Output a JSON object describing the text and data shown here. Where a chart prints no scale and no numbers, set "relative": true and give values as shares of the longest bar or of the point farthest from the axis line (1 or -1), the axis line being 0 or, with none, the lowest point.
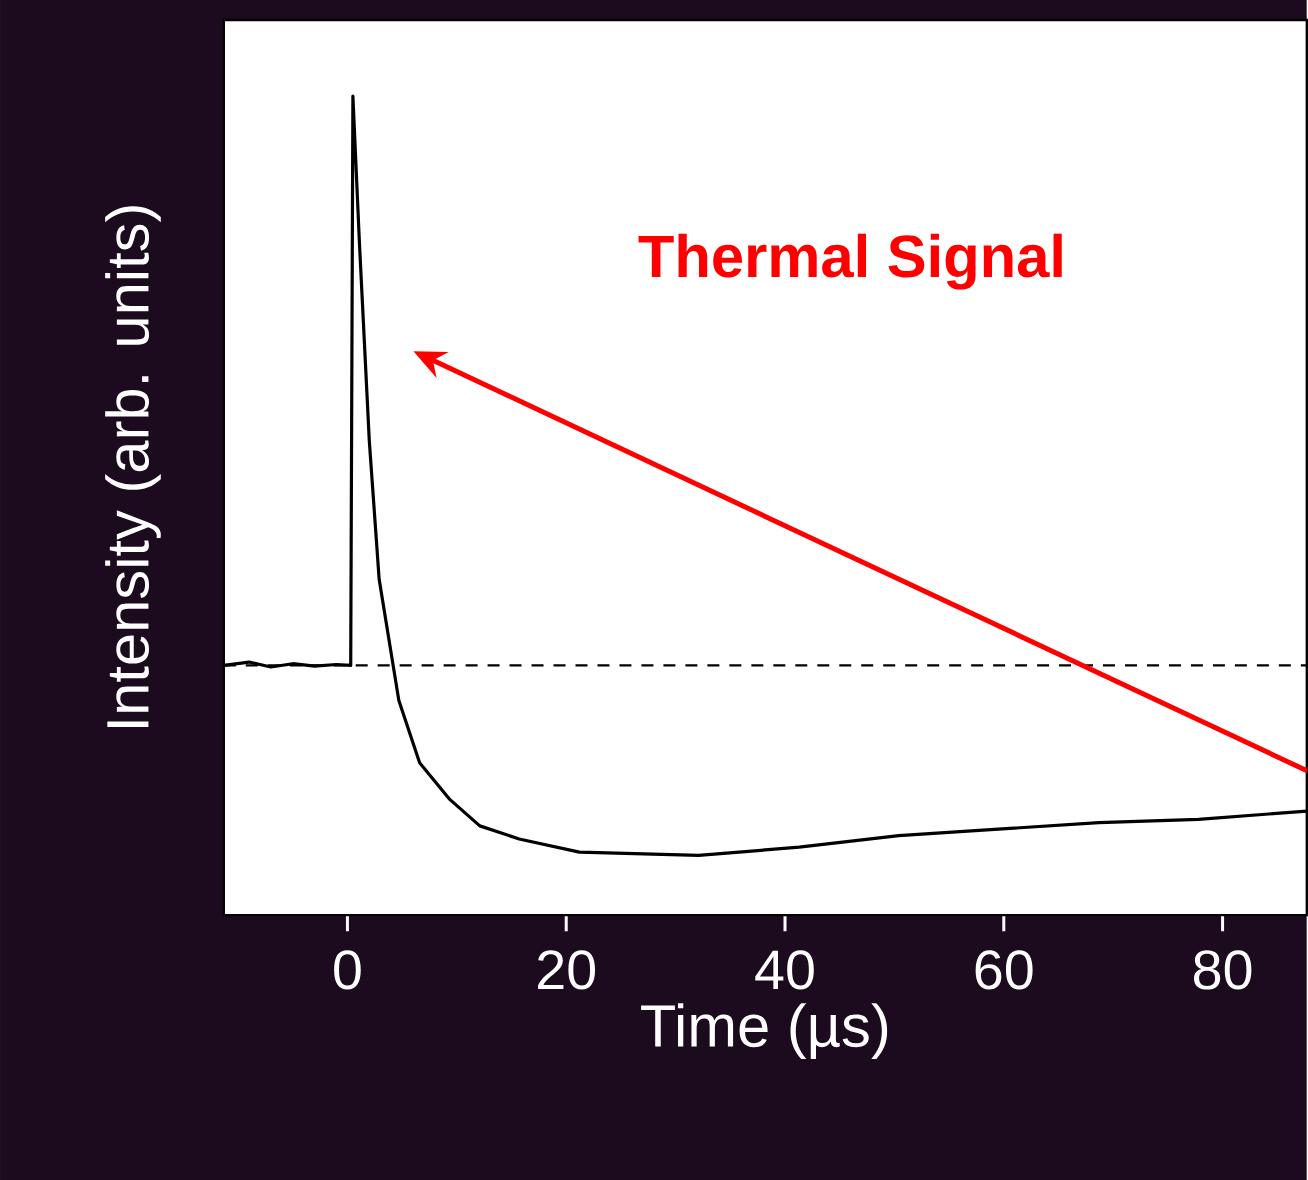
{
  "chart_data": {
    "type": "line",
    "relative": true,
    "xlabel": "Time (µs)",
    "ylabel": "Intensity (arb. units)",
    "x": [
      -11.3,
      -9,
      -7,
      -5,
      -3,
      -1,
      0.3,
      0.5,
      1.1,
      2.0,
      2.9,
      4.7,
      6.6,
      9.3,
      12.1,
      15.7,
      21.2,
      32.1,
      41.3,
      50.4,
      59.5,
      68.7,
      77.8,
      87.7
    ],
    "values": [
      0.305,
      0.309,
      0.303,
      0.307,
      0.304,
      0.306,
      0.305,
      1,
      0.82,
      0.579,
      0.41,
      0.262,
      0.186,
      0.142,
      0.109,
      0.093,
      0.077,
      0.073,
      0.083,
      0.097,
      0.105,
      0.113,
      0.117,
      0.127
    ],
    "color": "#000000",
    "xlim": [
      -11.3,
      87.7
    ],
    "xticks": [
      0,
      20,
      40,
      60,
      80
    ],
    "tick_labels": "x",
    "ref_lines": [
      {
        "axis": "y",
        "value": 0.305,
        "color": "#000000",
        "line_style": "dashed"
      }
    ],
    "annotations": [
      "**Thermal Signal**"
    ],
    "marker": "none",
    "line_style": "solid"
  }
}
